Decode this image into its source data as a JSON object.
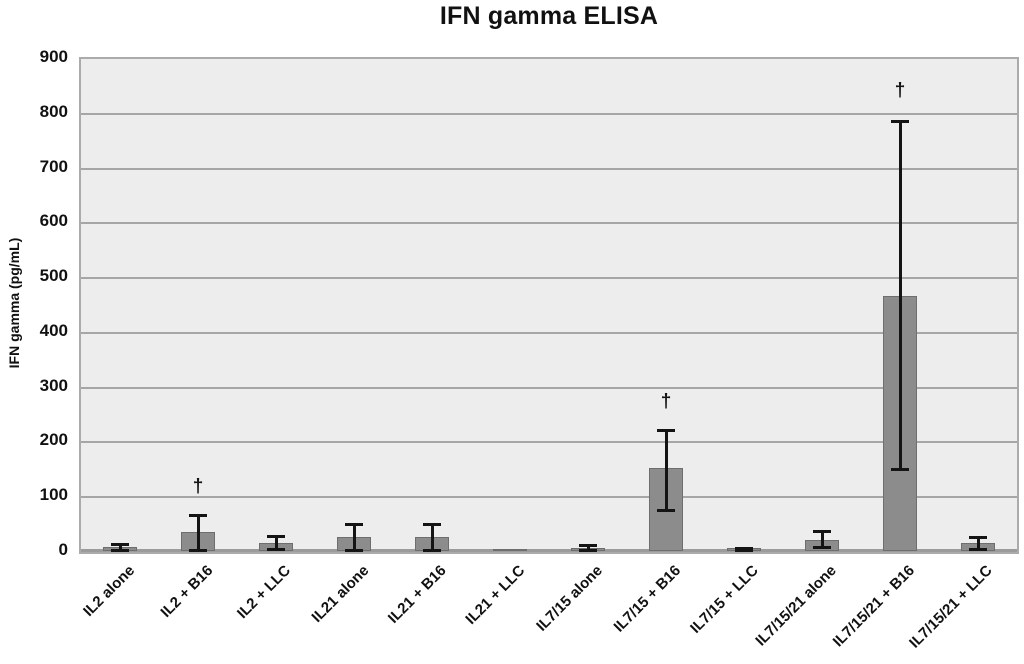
{
  "chart_data": {
    "type": "bar",
    "title": "IFN gamma ELISA",
    "ylabel": "IFN gamma (pg/mL)",
    "xlabel": "",
    "ylim": [
      0,
      900
    ],
    "yticks": [
      0,
      100,
      200,
      300,
      400,
      500,
      600,
      700,
      800,
      900
    ],
    "grid": "horizontal-only",
    "legend": false,
    "plot_background": "#EDEDED",
    "bar_color": "#8C8C8C",
    "bar_border_color": "#6E6E6E",
    "gridline_color": "#A6A6A6",
    "error_bar_color": "#141414",
    "categories": [
      "IL2 alone",
      "IL2 + B16",
      "IL2 + LLC",
      "IL21 alone",
      "IL21 + B16",
      "IL21 + LLC",
      "IL7/15 alone",
      "IL7/15 + B16",
      "IL7/15 + LLC",
      "IL7/15/21 alone",
      "IL7/15/21 + B16",
      "IL7/15/21 + LLC"
    ],
    "values": [
      7,
      35,
      15,
      25,
      25,
      3,
      6,
      151,
      5,
      21,
      466,
      15
    ],
    "error_low": [
      3,
      3,
      5,
      3,
      3,
      null,
      2,
      76,
      3,
      8,
      150,
      5
    ],
    "error_high": [
      13,
      66,
      28,
      51,
      51,
      null,
      12,
      221,
      7,
      37,
      785,
      26
    ],
    "annotations": [
      {
        "text": "†",
        "category": "IL2 + B16",
        "y": 118
      },
      {
        "text": "†",
        "category": "IL7/15 + B16",
        "y": 273
      },
      {
        "text": "†",
        "category": "IL7/15/21 + B16",
        "y": 842
      }
    ]
  }
}
